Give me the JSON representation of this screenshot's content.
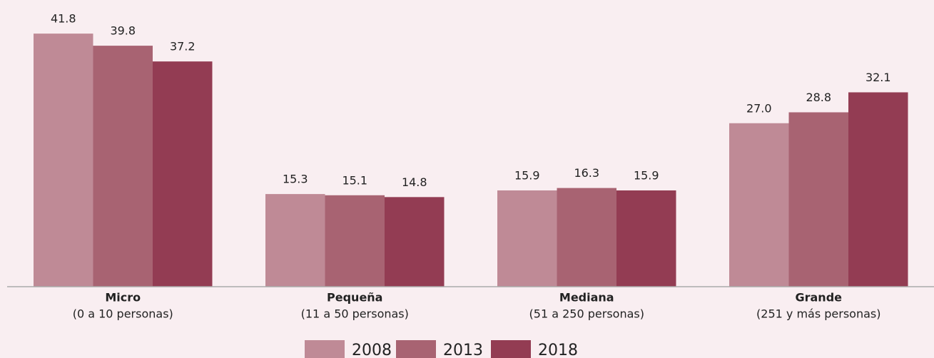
{
  "chart_data": {
    "type": "bar",
    "categories": [
      "Micro",
      "Pequeña",
      "Mediana",
      "Grande"
    ],
    "category_details": [
      "(0 a 10 personas)",
      "(11 a 50 personas)",
      "(51 a 250 personas)",
      "(251 y más personas)"
    ],
    "series": [
      {
        "name": "2008",
        "color": "#bf8a96",
        "values": [
          41.8,
          15.3,
          15.9,
          27
        ],
        "value_labels": [
          "41.8",
          "15.3",
          "15.9",
          "27.0"
        ]
      },
      {
        "name": "2013",
        "color": "#a86372",
        "values": [
          39.8,
          15.1,
          16.3,
          28.8
        ],
        "value_labels": [
          "39.8",
          "15.1",
          "16.3",
          "28.8"
        ]
      },
      {
        "name": "2018",
        "color": "#933c53",
        "values": [
          37.2,
          14.8,
          15.9,
          32.1
        ],
        "value_labels": [
          "37.2",
          "14.8",
          "15.9",
          "32.1"
        ]
      }
    ],
    "legend": "bottom"
  }
}
